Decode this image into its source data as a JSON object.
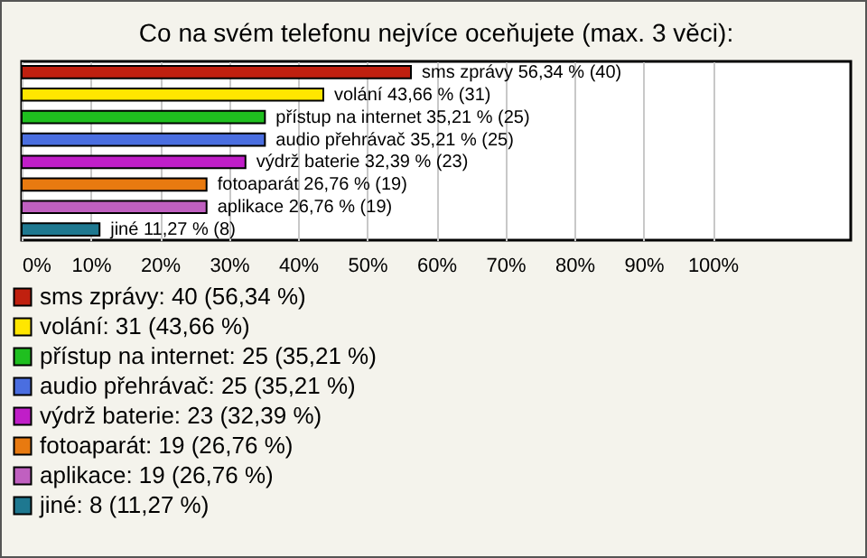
{
  "chart_data": {
    "type": "bar",
    "orientation": "horizontal",
    "title": "Co na svém telefonu nejvíce oceňujete (max. 3 věci):",
    "categories": [
      null,
      null,
      null,
      null,
      null,
      null,
      null,
      null
    ],
    "series": [
      {
        "name": "sms zprávy: 40 (56,34 %)",
        "color": "#c0200f",
        "values": [
          56.34,
          null,
          null,
          null,
          null,
          null,
          null,
          null
        ],
        "value_labels": [
          "sms zprávy 56,34 % (40)",
          null,
          null,
          null,
          null,
          null,
          null,
          null
        ]
      },
      {
        "name": "volání: 31 (43,66 %)",
        "color": "#ffe600",
        "values": [
          null,
          43.66,
          null,
          null,
          null,
          null,
          null,
          null
        ],
        "value_labels": [
          null,
          "volání 43,66 % (31)",
          null,
          null,
          null,
          null,
          null,
          null
        ]
      },
      {
        "name": "přístup na internet: 25 (35,21 %)",
        "color": "#1fbf1f",
        "values": [
          null,
          null,
          35.21,
          null,
          null,
          null,
          null,
          null
        ],
        "value_labels": [
          null,
          null,
          "přístup na internet 35,21 % (25)",
          null,
          null,
          null,
          null,
          null
        ]
      },
      {
        "name": "audio přehrávač: 25 (35,21 %)",
        "color": "#4a6ee0",
        "values": [
          null,
          null,
          null,
          35.21,
          null,
          null,
          null,
          null
        ],
        "value_labels": [
          null,
          null,
          null,
          "audio přehrávač 35,21 % (25)",
          null,
          null,
          null,
          null
        ]
      },
      {
        "name": "výdrž baterie: 23 (32,39 %)",
        "color": "#c01ec8",
        "values": [
          null,
          null,
          null,
          null,
          32.39,
          null,
          null,
          null
        ],
        "value_labels": [
          null,
          null,
          null,
          null,
          "výdrž baterie 32,39 % (23)",
          null,
          null,
          null
        ]
      },
      {
        "name": "fotoaparát: 19 (26,76 %)",
        "color": "#e87a10",
        "values": [
          null,
          null,
          null,
          null,
          null,
          26.76,
          null,
          null
        ],
        "value_labels": [
          null,
          null,
          null,
          null,
          null,
          "fotoaparát 26,76 % (19)",
          null,
          null
        ]
      },
      {
        "name": "aplikace: 19 (26,76 %)",
        "color": "#c060c0",
        "values": [
          null,
          null,
          null,
          null,
          null,
          null,
          26.76,
          null
        ],
        "value_labels": [
          null,
          null,
          null,
          null,
          null,
          null,
          "aplikace 26,76 % (19)",
          null
        ]
      },
      {
        "name": "jiné: 8 (11,27 %)",
        "color": "#1e7890",
        "values": [
          null,
          null,
          null,
          null,
          null,
          null,
          null,
          11.27
        ],
        "value_labels": [
          null,
          null,
          null,
          null,
          null,
          null,
          null,
          "jiné 11,27 % (8)"
        ]
      }
    ],
    "xlim": [
      0,
      120
    ],
    "xticks": [
      {
        "value": 0,
        "label": "0%"
      },
      {
        "value": 10,
        "label": "10%"
      },
      {
        "value": 20,
        "label": "20%"
      },
      {
        "value": 30,
        "label": "30%"
      },
      {
        "value": 40,
        "label": "40%"
      },
      {
        "value": 50,
        "label": "50%"
      },
      {
        "value": 60,
        "label": "60%"
      },
      {
        "value": 70,
        "label": "70%"
      },
      {
        "value": 80,
        "label": "80%"
      },
      {
        "value": 90,
        "label": "90%"
      },
      {
        "value": 100,
        "label": "100%"
      }
    ],
    "tick_labels": "x",
    "grid": "x",
    "legend": "bottom left"
  }
}
